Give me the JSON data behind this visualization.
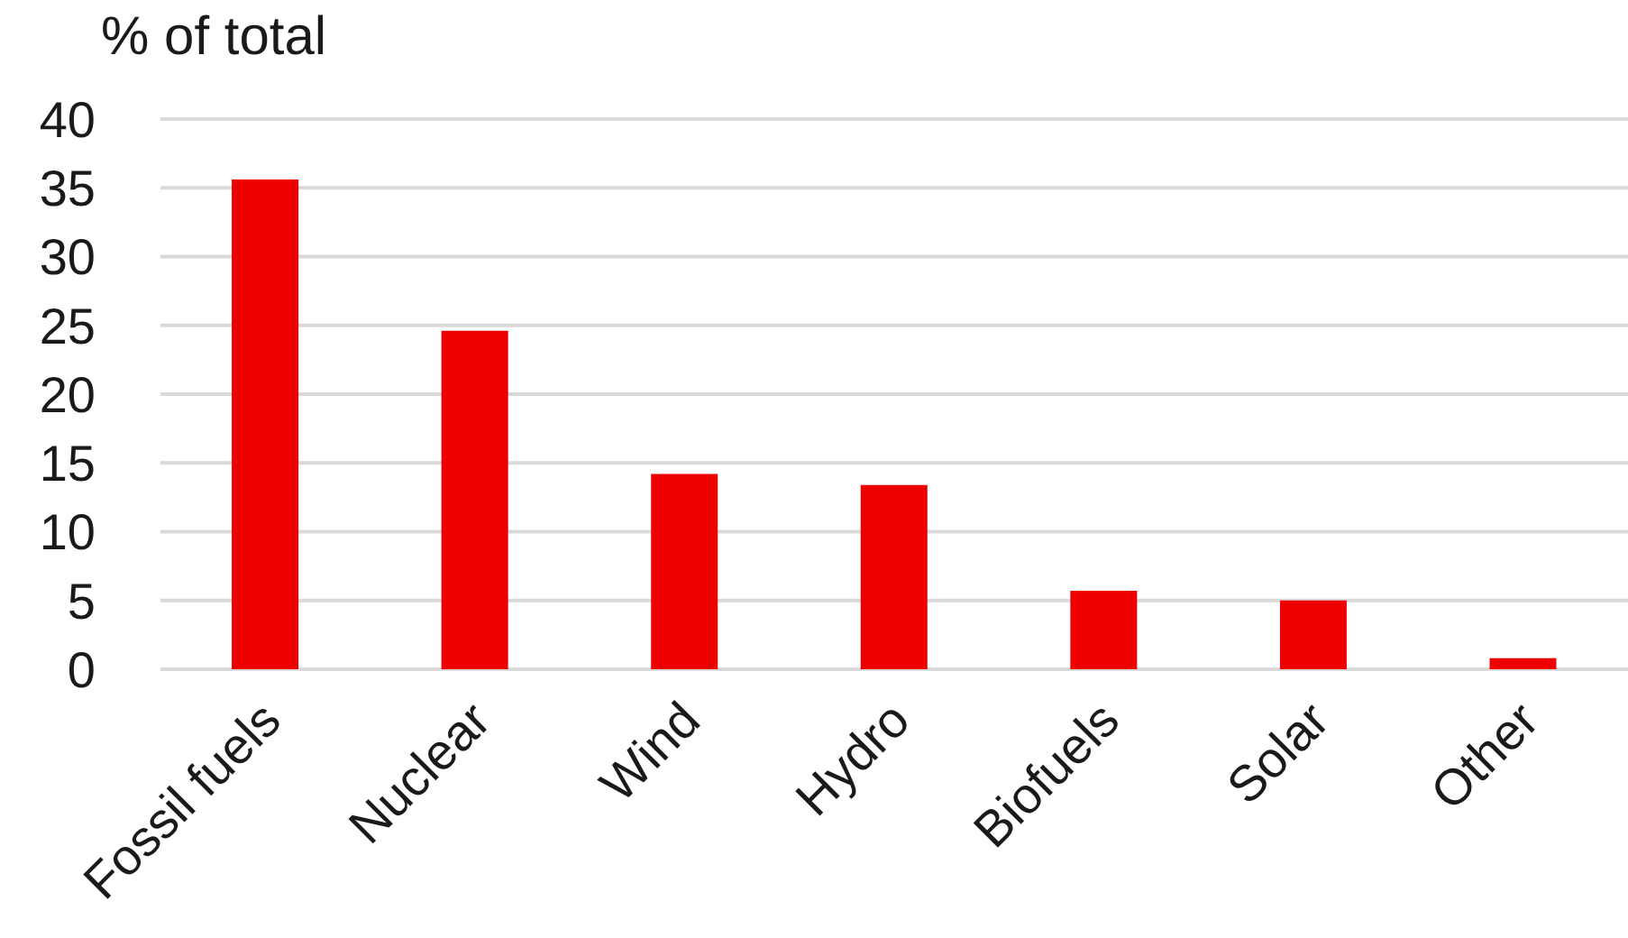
{
  "chart_data": {
    "type": "bar",
    "ylabel": "% of total",
    "categories": [
      "Fossil fuels",
      "Nuclear",
      "Wind",
      "Hydro",
      "Biofuels",
      "Solar",
      "Other"
    ],
    "values": [
      35.6,
      24.6,
      14.2,
      13.4,
      5.7,
      5.0,
      0.8
    ],
    "color": "#ee0000",
    "ylim": [
      0,
      40
    ],
    "yticks": [
      0,
      5,
      10,
      15,
      20,
      25,
      30,
      35,
      40
    ],
    "grid": "y"
  }
}
